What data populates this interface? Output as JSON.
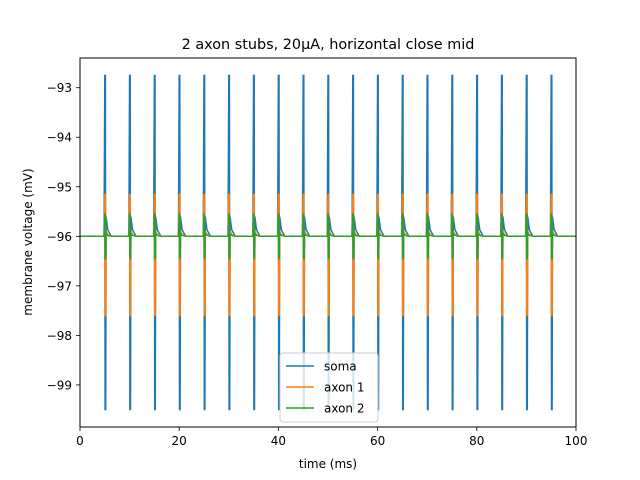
{
  "chart_data": {
    "type": "line",
    "title": "2 axon stubs, 20μA, horizontal close mid",
    "xlabel": "time (ms)",
    "ylabel": "membrane voltage (mV)",
    "xlim": [
      0,
      100
    ],
    "ylim": [
      -99.85,
      -92.4
    ],
    "xticks": [
      0,
      20,
      40,
      60,
      80,
      100
    ],
    "yticks": [
      -99,
      -98,
      -97,
      -96,
      -95,
      -94,
      -93
    ],
    "legend_position": "lower center",
    "grid": false,
    "baseline": -96.0,
    "pulse_times": [
      5,
      10,
      15,
      20,
      25,
      30,
      35,
      40,
      45,
      50,
      55,
      60,
      65,
      70,
      75,
      80,
      85,
      90,
      95
    ],
    "series": [
      {
        "name": "soma",
        "color": "#1f77b4",
        "peak_max": -92.75,
        "peak_min": -99.5
      },
      {
        "name": "axon 1",
        "color": "#ff7f0e",
        "peak_max": -95.15,
        "peak_min": -97.6
      },
      {
        "name": "axon 2",
        "color": "#2ca02c",
        "peak_max": -95.55,
        "peak_min": -96.45
      }
    ],
    "tick_labels": {
      "x": [
        "0",
        "20",
        "40",
        "60",
        "80",
        "100"
      ],
      "y": [
        "−99",
        "−98",
        "−97",
        "−96",
        "−95",
        "−94",
        "−93"
      ]
    }
  }
}
